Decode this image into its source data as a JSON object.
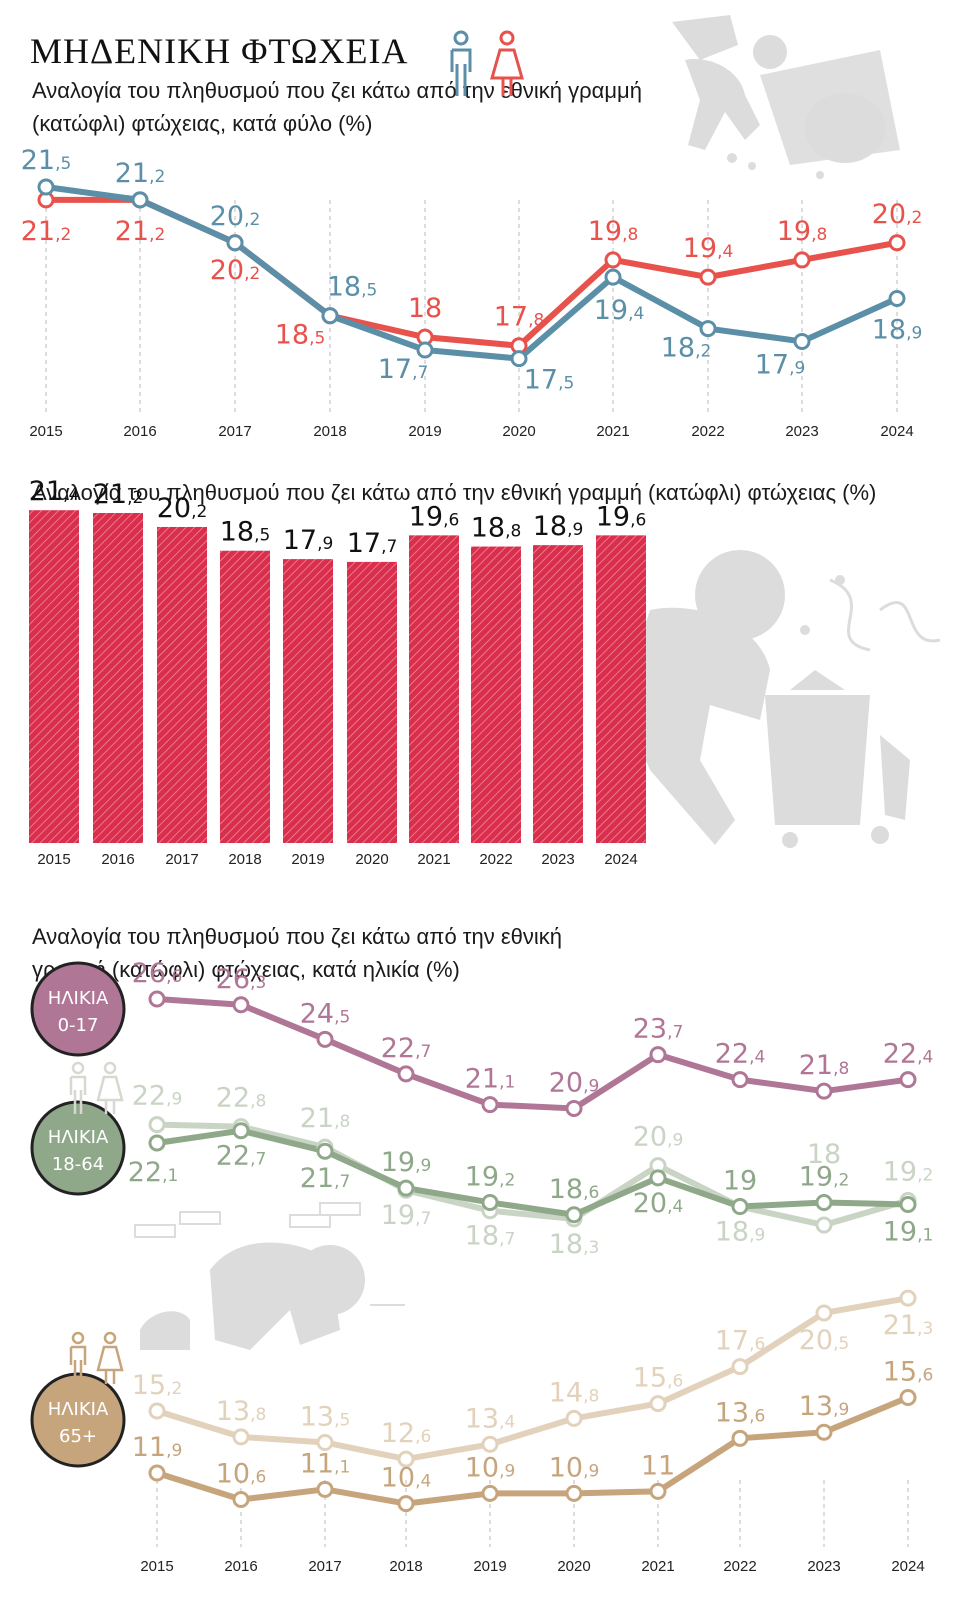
{
  "title": "ΜΗΔΕΝΙΚΗ ΦΤΩΧΕΙΑ",
  "colors": {
    "male": "#5b8fa8",
    "female": "#e8524c",
    "bar": "#d92f4d",
    "age_0_17": "#b07695",
    "age_18_64_dark": "#8fa88a",
    "age_18_64_light": "#c9d4c5",
    "age_65_dark": "#c7a57c",
    "age_65_light": "#e3d2bb",
    "illustration": "#dcdcdc"
  },
  "icons": [
    "man-icon",
    "woman-icon",
    "person-at-trash-illustration",
    "person-bending-illustration",
    "person-crouching-illustration"
  ],
  "chart_data": [
    {
      "type": "line",
      "subtitle": "Αναλογία του πληθυσμού που ζει κάτω από την εθνική γραμμή (κατώφλι) φτώχειας, κατά φύλο (%)",
      "categories": [
        "2015",
        "2016",
        "2017",
        "2018",
        "2019",
        "2020",
        "2021",
        "2022",
        "2023",
        "2024"
      ],
      "series": [
        {
          "values": [
            21.5,
            21.2,
            20.2,
            18.5,
            17.7,
            17.5,
            19.4,
            18.2,
            17.9,
            18.9
          ],
          "labels": [
            "21,5",
            "21,2",
            "20,2",
            "18,5",
            "17,7",
            "17,5",
            "19,4",
            "18,2",
            "17,9",
            "18,9"
          ]
        },
        {
          "values": [
            21.2,
            21.2,
            20.2,
            18.5,
            18,
            17.8,
            19.8,
            19.4,
            19.8,
            20.2
          ],
          "labels": [
            "21,2",
            "21,2",
            "20,2",
            "18,5",
            "18",
            "17,8",
            "19,8",
            "19,4",
            "19,8",
            "20,2"
          ]
        }
      ],
      "ylim": [
        17.2,
        21.9
      ],
      "legend_icons": [
        "man-icon",
        "woman-icon"
      ]
    },
    {
      "type": "bar",
      "subtitle": "Αναλογία του πληθυσμού που ζει κάτω από την εθνική γραμμή (κατώφλι) φτώχειας (%)",
      "categories": [
        "2015",
        "2016",
        "2017",
        "2018",
        "2019",
        "2020",
        "2021",
        "2022",
        "2023",
        "2024"
      ],
      "values": [
        21.4,
        21.2,
        20.2,
        18.5,
        17.9,
        17.7,
        19.6,
        18.8,
        18.9,
        19.6
      ],
      "labels": [
        "21,4",
        "21,2",
        "20,2",
        "18,5",
        "17,9",
        "17,7",
        "19,6",
        "18,8",
        "18,9",
        "19,6"
      ],
      "ylim": [
        0,
        22
      ]
    },
    {
      "type": "line",
      "subtitle": "Αναλογία του πληθυσμού που ζει κάτω από την εθνική γραμμή (κατώφλι) φτώχειας, κατά ηλικία (%)",
      "categories": [
        "2015",
        "2016",
        "2017",
        "2018",
        "2019",
        "2020",
        "2021",
        "2022",
        "2023",
        "2024"
      ],
      "groups": [
        {
          "badge": "ΗΛΙΚΙΑ",
          "badge_range": "0-17",
          "series": [
            {
              "values": [
                26.6,
                26.3,
                24.5,
                22.7,
                21.1,
                20.9,
                23.7,
                22.4,
                21.8,
                22.4
              ],
              "labels": [
                "26,6",
                "26,3",
                "24,5",
                "22,7",
                "21,1",
                "20,9",
                "23,7",
                "22,4",
                "21,8",
                "22,4"
              ]
            }
          ]
        },
        {
          "badge": "ΗΛΙΚΙΑ",
          "badge_range": "18-64",
          "series": [
            {
              "values": [
                22.1,
                22.7,
                21.7,
                19.9,
                19.2,
                18.6,
                20.4,
                19,
                19.2,
                19.1
              ],
              "labels": [
                "22,1",
                "22,7",
                "21,7",
                "19,9",
                "19,2",
                "18,6",
                "20,4",
                "19",
                "19,2",
                "19,1"
              ]
            },
            {
              "values": [
                22.9,
                22.8,
                21.8,
                19.7,
                18.7,
                18.3,
                20.9,
                18.9,
                18,
                19.2
              ],
              "labels": [
                "22,9",
                "22,8",
                "21,8",
                "19,7",
                "18,7",
                "18,3",
                "20,9",
                "18,9",
                "18",
                "19,2"
              ]
            }
          ]
        },
        {
          "badge": "ΗΛΙΚΙΑ",
          "badge_range": "65+",
          "series": [
            {
              "values": [
                11.9,
                10.6,
                11.1,
                10.4,
                10.9,
                10.9,
                11,
                13.6,
                13.9,
                15.6
              ],
              "labels": [
                "11,9",
                "10,6",
                "11,1",
                "10,4",
                "10,9",
                "10,9",
                "11",
                "13,6",
                "13,9",
                "15,6"
              ]
            },
            {
              "values": [
                15.2,
                13.8,
                13.5,
                12.6,
                13.4,
                14.8,
                15.6,
                17.6,
                20.5,
                21.3
              ],
              "labels": [
                "15,2",
                "13,8",
                "13,5",
                "12,6",
                "13,4",
                "14,8",
                "15,6",
                "17,6",
                "20,5",
                "21,3"
              ]
            }
          ]
        }
      ]
    }
  ]
}
